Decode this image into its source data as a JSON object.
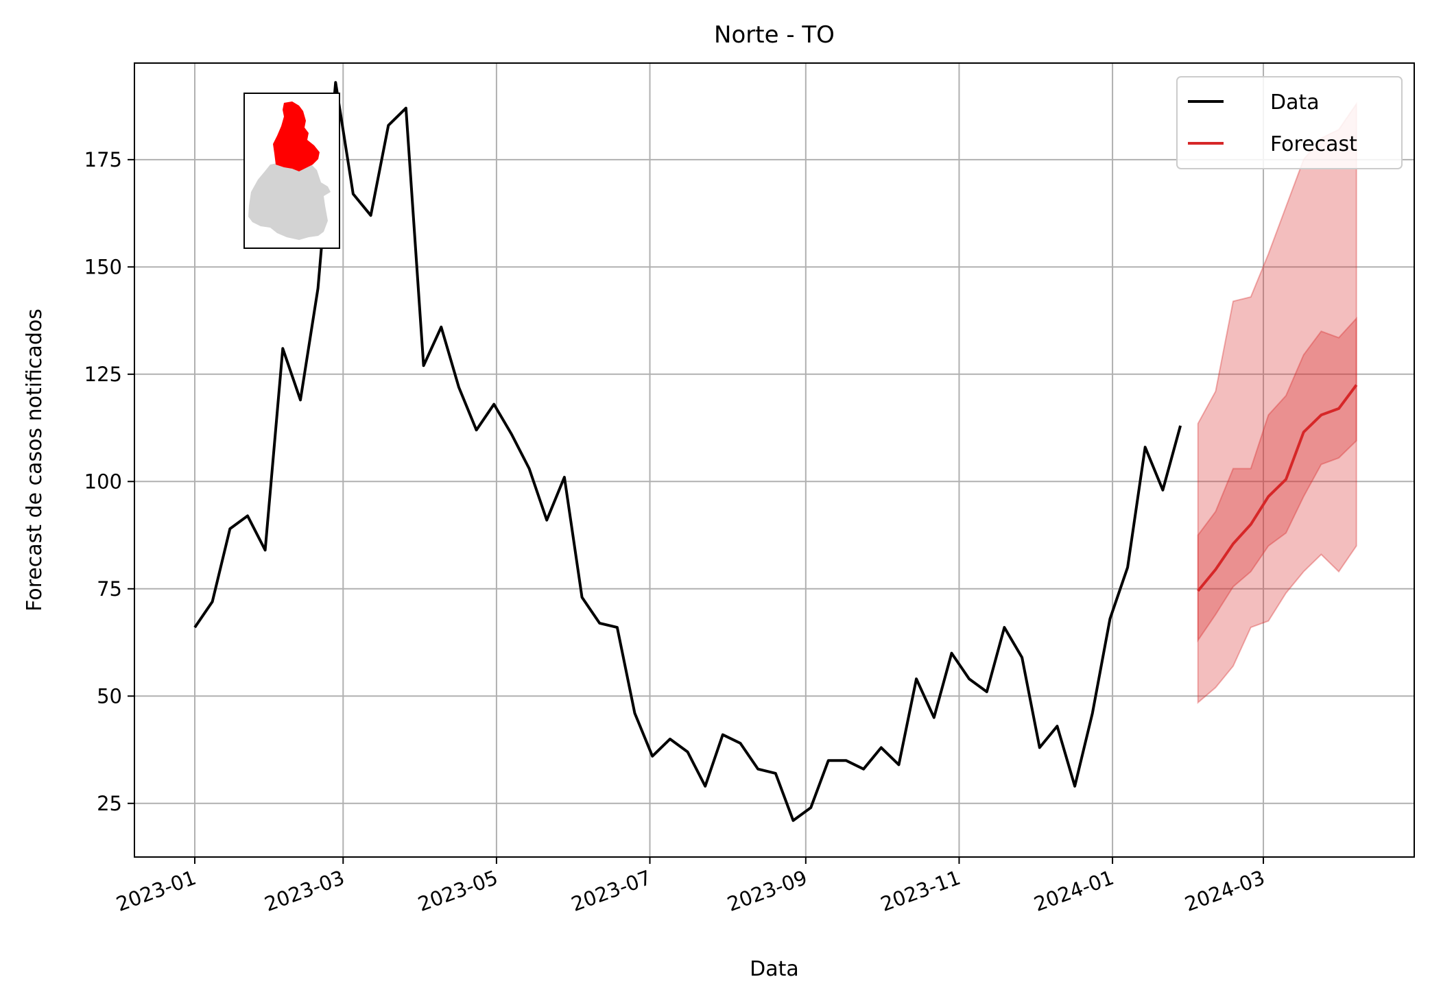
{
  "chart_data": {
    "type": "line",
    "title": "Norte - TO",
    "xlabel": "Data",
    "ylabel": "Forecast de casos notificados",
    "x_tick_labels": [
      "2023-01",
      "2023-03",
      "2023-05",
      "2023-07",
      "2023-09",
      "2023-11",
      "2024-01",
      "2024-03"
    ],
    "x_tick_dates": [
      "2023-01-01",
      "2023-03-01",
      "2023-05-01",
      "2023-07-01",
      "2023-09-01",
      "2023-11-01",
      "2024-01-01",
      "2024-03-01"
    ],
    "y_ticks": [
      25,
      50,
      75,
      100,
      125,
      150,
      175
    ],
    "y_tick_labels": [
      "25",
      "50",
      "75",
      "100",
      "125",
      "150",
      "175"
    ],
    "xlim": [
      "2022-12-08",
      "2024-04-30"
    ],
    "ylim": [
      12.5,
      197.5
    ],
    "grid": true,
    "legend_position": "top-right",
    "colors": {
      "data": "#000000",
      "forecast": "#d62728",
      "band": "#d62728",
      "grid": "#b0b0b0"
    },
    "series": [
      {
        "name": "Data",
        "dates": [
          "2023-01-01",
          "2023-01-08",
          "2023-01-15",
          "2023-01-22",
          "2023-01-29",
          "2023-02-05",
          "2023-02-12",
          "2023-02-19",
          "2023-02-26",
          "2023-03-05",
          "2023-03-12",
          "2023-03-19",
          "2023-03-26",
          "2023-04-02",
          "2023-04-09",
          "2023-04-16",
          "2023-04-23",
          "2023-04-30",
          "2023-05-07",
          "2023-05-14",
          "2023-05-21",
          "2023-05-28",
          "2023-06-04",
          "2023-06-11",
          "2023-06-18",
          "2023-06-25",
          "2023-07-02",
          "2023-07-09",
          "2023-07-16",
          "2023-07-23",
          "2023-07-30",
          "2023-08-06",
          "2023-08-13",
          "2023-08-20",
          "2023-08-27",
          "2023-09-03",
          "2023-09-10",
          "2023-09-17",
          "2023-09-24",
          "2023-10-01",
          "2023-10-08",
          "2023-10-15",
          "2023-10-22",
          "2023-10-29",
          "2023-11-05",
          "2023-11-12",
          "2023-11-19",
          "2023-11-26",
          "2023-12-03",
          "2023-12-10",
          "2023-12-17",
          "2023-12-24",
          "2023-12-31",
          "2024-01-07",
          "2024-01-14",
          "2024-01-21",
          "2024-01-28"
        ],
        "values": [
          66,
          72,
          89,
          92,
          84,
          131,
          119,
          145,
          193,
          167,
          162,
          183,
          187,
          127,
          136,
          122,
          112,
          118,
          111,
          103,
          91,
          101,
          73,
          67,
          66,
          46,
          36,
          40,
          37,
          29,
          41,
          39,
          33,
          32,
          21,
          24,
          35,
          35,
          33,
          38,
          34,
          54,
          45,
          60,
          54,
          51,
          66,
          59,
          38,
          43,
          29,
          46,
          68,
          80,
          108,
          98,
          113
        ]
      },
      {
        "name": "Forecast",
        "dates": [
          "2024-02-04",
          "2024-02-11",
          "2024-02-18",
          "2024-02-25",
          "2024-03-03",
          "2024-03-10",
          "2024-03-17",
          "2024-03-24",
          "2024-03-31",
          "2024-04-07"
        ],
        "values": [
          74.5,
          79.5,
          85.5,
          90,
          96.5,
          100.5,
          111.5,
          115.5,
          117,
          122.5
        ],
        "inner_lower": [
          63,
          69,
          75.5,
          79,
          85,
          88,
          96.5,
          104,
          105.5,
          109.5
        ],
        "inner_upper": [
          87.5,
          93,
          103,
          103,
          115.5,
          120,
          129.5,
          135,
          133.5,
          138
        ],
        "outer_lower": [
          48.5,
          52,
          57,
          66,
          67.5,
          74,
          79,
          83,
          79,
          85
        ],
        "outer_upper": [
          113.5,
          121,
          142,
          143,
          153,
          164,
          175,
          180,
          182,
          188
        ]
      }
    ]
  },
  "inset_map": {
    "highlight_color": "#ff0000",
    "base_color": "#d3d3d3"
  }
}
